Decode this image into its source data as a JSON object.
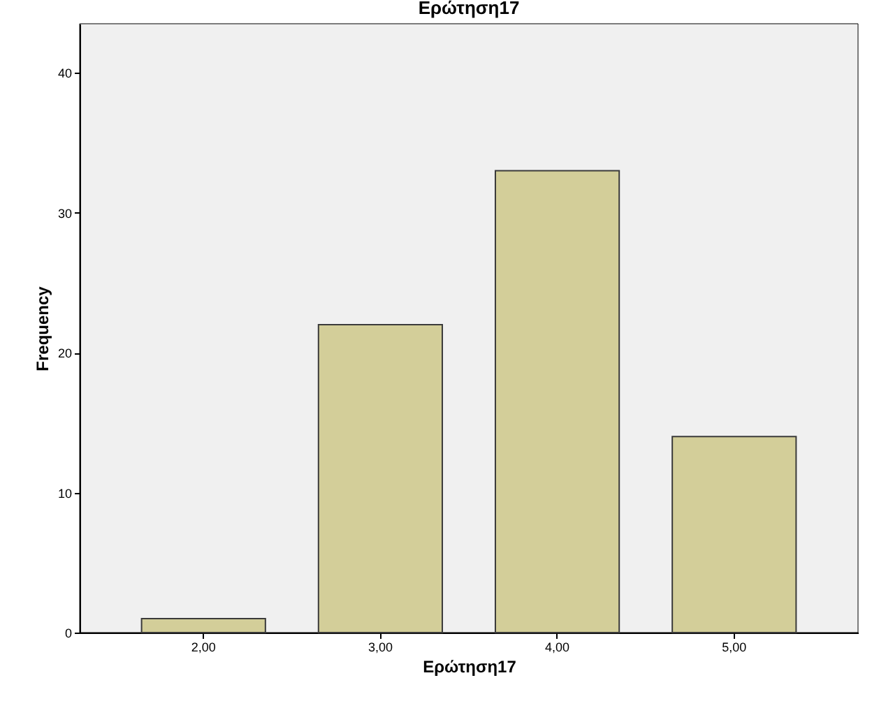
{
  "chart_data": {
    "type": "bar",
    "title": "Ερώτηση17",
    "xlabel": "Ερώτηση17",
    "ylabel": "Frequency",
    "categories": [
      "2,00",
      "3,00",
      "4,00",
      "5,00"
    ],
    "values": [
      1,
      22,
      33,
      14
    ],
    "color": "#d3ce99",
    "ylim": [
      0,
      43.5
    ],
    "yticks": [
      0,
      10,
      20,
      30,
      40
    ],
    "grid": false
  }
}
